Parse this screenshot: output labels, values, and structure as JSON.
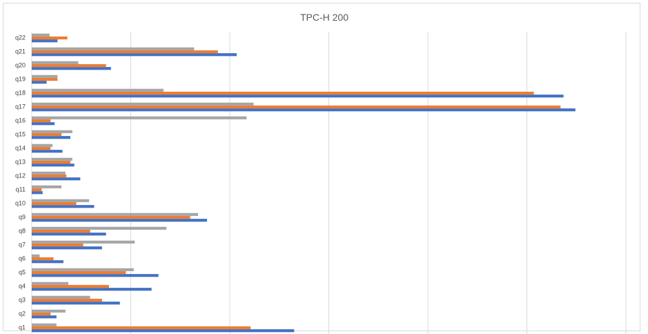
{
  "chart_data": {
    "type": "bar",
    "orientation": "horizontal",
    "title": "TPC-H 200",
    "xlabel": "",
    "ylabel": "",
    "grid": true,
    "legend": "none",
    "xlim": [
      0,
      6
    ],
    "categories": [
      "q1",
      "q2",
      "q3",
      "q4",
      "q5",
      "q6",
      "q7",
      "q8",
      "q9",
      "q10",
      "q11",
      "q12",
      "q13",
      "q14",
      "q15",
      "q16",
      "q17",
      "q18",
      "q19",
      "q20",
      "q21",
      "q22"
    ],
    "series": [
      {
        "color": "#4472c4",
        "values": [
          2.65,
          0.25,
          0.89,
          1.21,
          1.28,
          0.32,
          0.71,
          0.75,
          1.77,
          0.63,
          0.11,
          0.49,
          0.43,
          0.31,
          0.39,
          0.23,
          5.49,
          5.37,
          0.15,
          0.8,
          2.07,
          0.26
        ]
      },
      {
        "color": "#ed7d31",
        "values": [
          2.21,
          0.19,
          0.71,
          0.78,
          0.95,
          0.22,
          0.52,
          0.59,
          1.6,
          0.45,
          0.1,
          0.35,
          0.39,
          0.19,
          0.3,
          0.19,
          5.34,
          5.07,
          0.26,
          0.75,
          1.88,
          0.36
        ]
      },
      {
        "color": "#a5a5a5",
        "values": [
          0.25,
          0.34,
          0.59,
          0.37,
          1.03,
          0.08,
          1.04,
          1.36,
          1.68,
          0.58,
          0.3,
          0.34,
          0.41,
          0.21,
          0.41,
          2.17,
          2.24,
          1.33,
          0.26,
          0.47,
          1.64,
          0.18
        ]
      }
    ]
  }
}
